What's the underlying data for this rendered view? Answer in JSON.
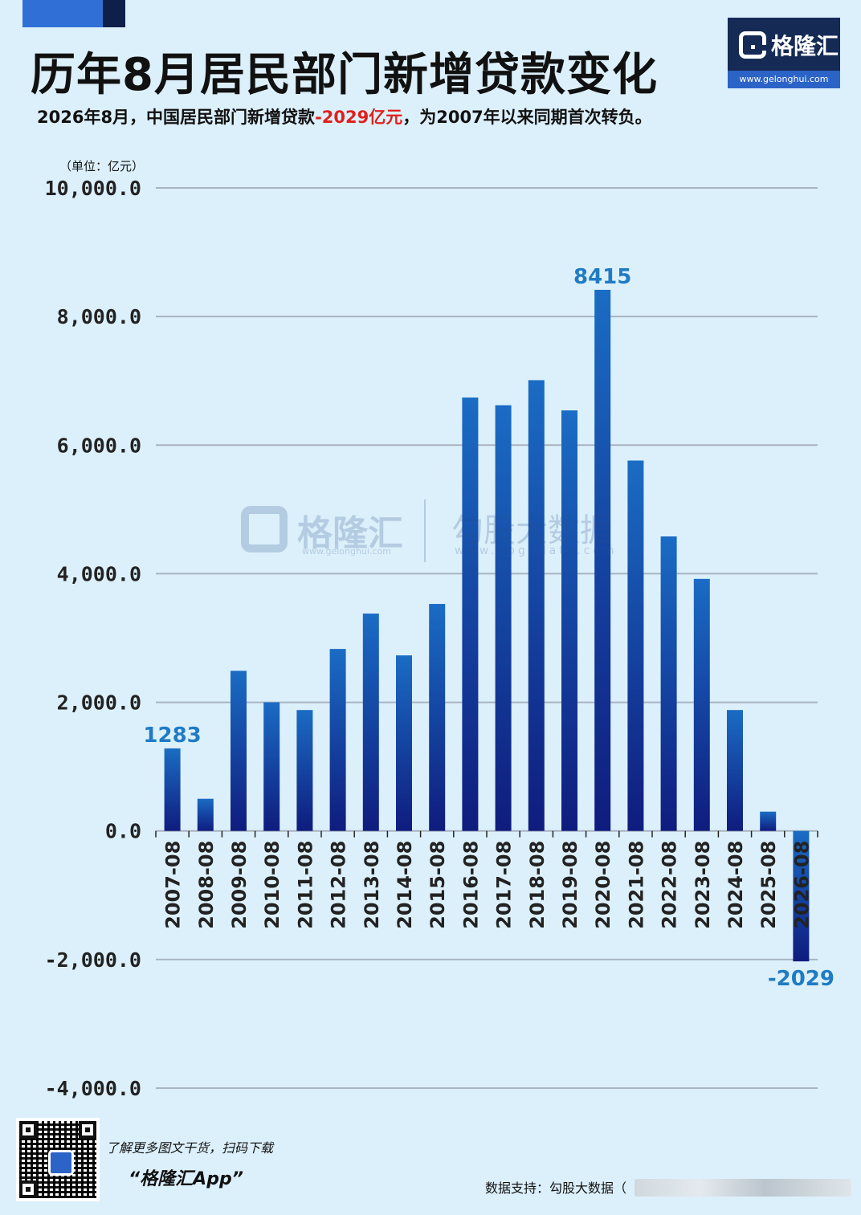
{
  "header": {
    "title": "历年8月居民部门新增贷款变化",
    "subtitle_pre": "2026年8月，中国居民部门新增贷款",
    "subtitle_highlight": "-2029亿元",
    "subtitle_post": "，为2007年以来同期首次转负。",
    "highlight_color": "#e0201c"
  },
  "logo": {
    "name": "格隆汇",
    "url": "www.gelonghui.com"
  },
  "watermark": {
    "name": "格隆汇",
    "url": "www.gelonghui.com",
    "name2": "勾股大数据",
    "url2": "www.gogudata.com"
  },
  "chart_data": {
    "type": "bar",
    "unit_label": "（单位：亿元）",
    "categories": [
      "2007-08",
      "2008-08",
      "2009-08",
      "2010-08",
      "2011-08",
      "2012-08",
      "2013-08",
      "2014-08",
      "2015-08",
      "2016-08",
      "2017-08",
      "2018-08",
      "2019-08",
      "2020-08",
      "2021-08",
      "2022-08",
      "2023-08",
      "2024-08",
      "2025-08",
      "2026-08"
    ],
    "values": [
      1283,
      500,
      2490,
      2000,
      1880,
      2830,
      3380,
      2730,
      3530,
      6740,
      6620,
      7010,
      6540,
      8415,
      5760,
      4580,
      3920,
      1880,
      300,
      -2029
    ],
    "data_labels": [
      {
        "category": "2007-08",
        "text": "1283"
      },
      {
        "category": "2020-08",
        "text": "8415"
      },
      {
        "category": "2026-08",
        "text": "-2029"
      }
    ],
    "yticks": [
      10000,
      8000,
      6000,
      4000,
      2000,
      0,
      -2000,
      -4000
    ],
    "ytick_labels": [
      "10,000.0",
      "8,000.0",
      "6,000.0",
      "4,000.0",
      "2,000.0",
      "0.0",
      "-2,000.0",
      "-4,000.0"
    ],
    "ylim": [
      -4000,
      10000
    ],
    "grid": true,
    "colors": {
      "bar_top": "#1a6cc4",
      "bar_bottom": "#0f1c7e",
      "grid": "#a8b4c0",
      "label": "#1f7bc4",
      "axis_text": "#111111"
    }
  },
  "footer": {
    "qr_caption": "了解更多图文干货，扫码下载",
    "app_name": "“格隆汇App”",
    "source": "数据支持：勾股大数据（"
  }
}
